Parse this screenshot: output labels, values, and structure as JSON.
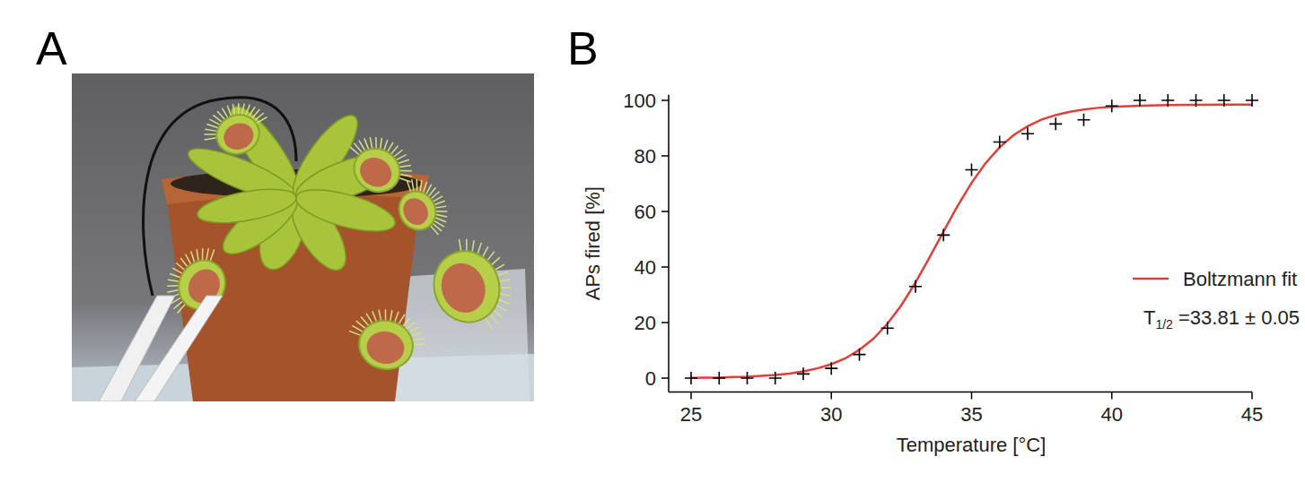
{
  "panel_labels": [
    "A",
    "B"
  ],
  "chart_data": {
    "type": "scatter",
    "x_label": "Temperature [°C]",
    "y_label": "APs fired [%]",
    "xlim": [
      24.2,
      45
    ],
    "xticks": [
      25,
      30,
      35,
      40,
      45
    ],
    "ylim": [
      -5,
      102
    ],
    "yticks": [
      0,
      20,
      40,
      60,
      80,
      100
    ],
    "grid": false,
    "legend": "lower right",
    "annotation": {
      "symbol": "T",
      "subscript": "1/2",
      "text": " =33.81 ± 0.05"
    },
    "series": [
      {
        "type": "scatter",
        "marker": "plus",
        "color": "#000000",
        "x": [
          25,
          26,
          27,
          28,
          29,
          30,
          31,
          32,
          33,
          34,
          35,
          36,
          37,
          38,
          39,
          40,
          41,
          42,
          43,
          44,
          45
        ],
        "values": [
          0,
          0,
          0,
          0,
          1.5,
          3.5,
          8.5,
          18,
          33,
          51.5,
          75,
          85,
          88,
          91.5,
          93,
          98,
          100,
          100,
          100,
          100,
          100
        ]
      },
      {
        "name": "Boltzmann fit",
        "type": "line",
        "line_style": "solid",
        "color": "#e0403a",
        "x": [
          25,
          25.5,
          26,
          26.5,
          27,
          27.5,
          28,
          28.5,
          29,
          29.5,
          30,
          30.5,
          31,
          31.5,
          32,
          32.5,
          33,
          33.5,
          34,
          34.5,
          35,
          35.5,
          36,
          36.5,
          37,
          37.5,
          38,
          38.5,
          39,
          39.5,
          40,
          41,
          42,
          43,
          44,
          45
        ],
        "values": [
          0.1,
          0.2,
          0.2,
          0.4,
          0.5,
          0.8,
          1.1,
          1.6,
          2.4,
          3.5,
          5.0,
          7.1,
          10.2,
          14.2,
          19.6,
          26.3,
          34.4,
          43.4,
          52.8,
          62.0,
          70.3,
          77.4,
          83.1,
          87.5,
          90.7,
          93.1,
          94.7,
          95.9,
          96.7,
          97.3,
          97.7,
          98.1,
          98.3,
          98.4,
          98.5,
          98.5
        ]
      }
    ]
  }
}
